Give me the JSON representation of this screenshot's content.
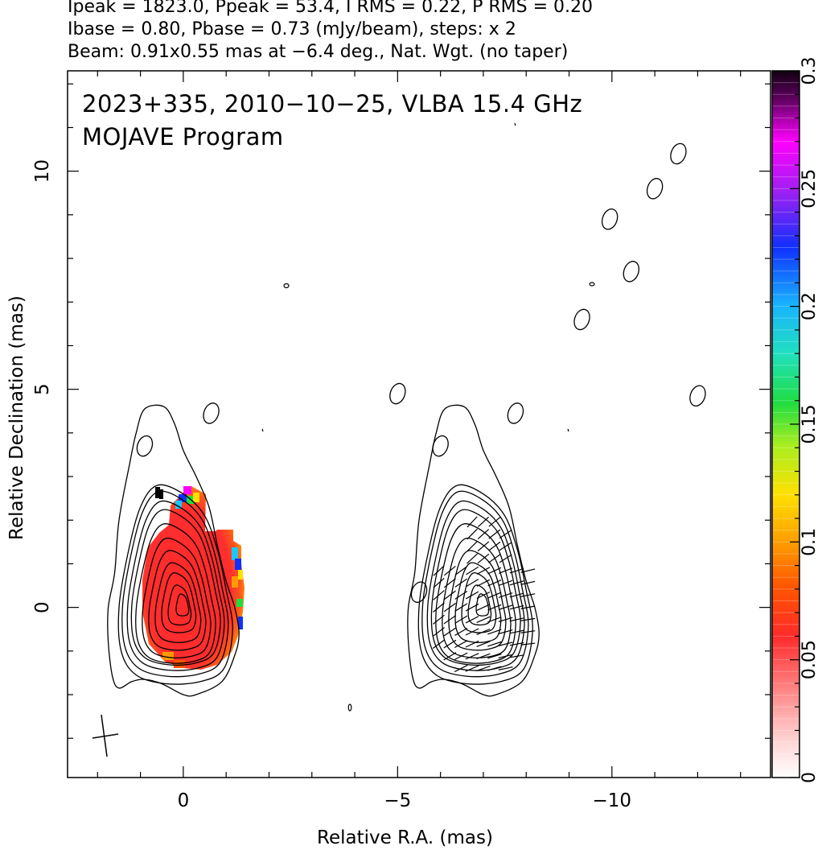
{
  "header": {
    "line1": "Ipeak = 1823.0, Ppeak = 53.4, I RMS = 0.22, P RMS = 0.20",
    "line2": "Ibase = 0.80, Pbase = 0.73 (mJy/beam), steps: x 2",
    "line3": "Beam: 0.91x0.55 mas at −6.4 deg., Nat. Wgt. (no taper)"
  },
  "annotation": {
    "line1": "2023+335, 2010−10−25, VLBA 15.4 GHz",
    "line2": "MOJAVE Program"
  },
  "chart_data": {
    "type": "heatmap",
    "xlabel": "Relative R.A. (mas)",
    "ylabel": "Relative Declination (mas)",
    "xlim": [
      2.7,
      -13.7
    ],
    "ylim": [
      -3.9,
      12.3
    ],
    "x_ticks": [
      0,
      -5,
      -10
    ],
    "x_tick_labels": [
      "0",
      "−5",
      "−10"
    ],
    "y_ticks": [
      0,
      5,
      10
    ],
    "y_tick_labels": [
      "0",
      "5",
      "10"
    ],
    "colorbar": {
      "range": [
        0,
        0.3
      ],
      "ticks": [
        0,
        0.05,
        0.1,
        0.15,
        0.2,
        0.25,
        0.3
      ],
      "tick_labels": [
        "0",
        "0.05",
        "0.1",
        "0.15",
        "0.2",
        "0.25",
        "0.3"
      ]
    },
    "beam": {
      "major_mas": 0.91,
      "minor_mas": 0.55,
      "pa_deg": -6.4
    },
    "panels": [
      {
        "name": "fractional polarization + Stokes I contours",
        "ra_center": 0.0,
        "dec_center": 0.0
      },
      {
        "name": "EVPA sticks + Stokes I contours",
        "ra_center": -7.0,
        "dec_center": 0.0
      }
    ],
    "contour_levels_mjy_per_beam": [
      0.8,
      1.6,
      3.2,
      6.4,
      12.8,
      25.6,
      51.2,
      102.4,
      204.8,
      409.6,
      819.2,
      1638.4
    ],
    "isolated_components": [
      {
        "ra": 0.9,
        "dec": 3.7
      },
      {
        "ra": -0.65,
        "dec": 4.45
      },
      {
        "ra": -5.0,
        "dec": 4.9
      },
      {
        "ra": -6.0,
        "dec": 3.7
      },
      {
        "ra": -7.75,
        "dec": 4.45
      },
      {
        "ra": -9.3,
        "dec": 6.6
      },
      {
        "ra": -9.95,
        "dec": 8.9
      },
      {
        "ra": -10.45,
        "dec": 7.7
      },
      {
        "ra": -11.0,
        "dec": 9.6
      },
      {
        "ra": -11.55,
        "dec": 10.4
      },
      {
        "ra": -12.0,
        "dec": 4.85
      },
      {
        "ra": -5.5,
        "dec": 0.35
      }
    ]
  }
}
